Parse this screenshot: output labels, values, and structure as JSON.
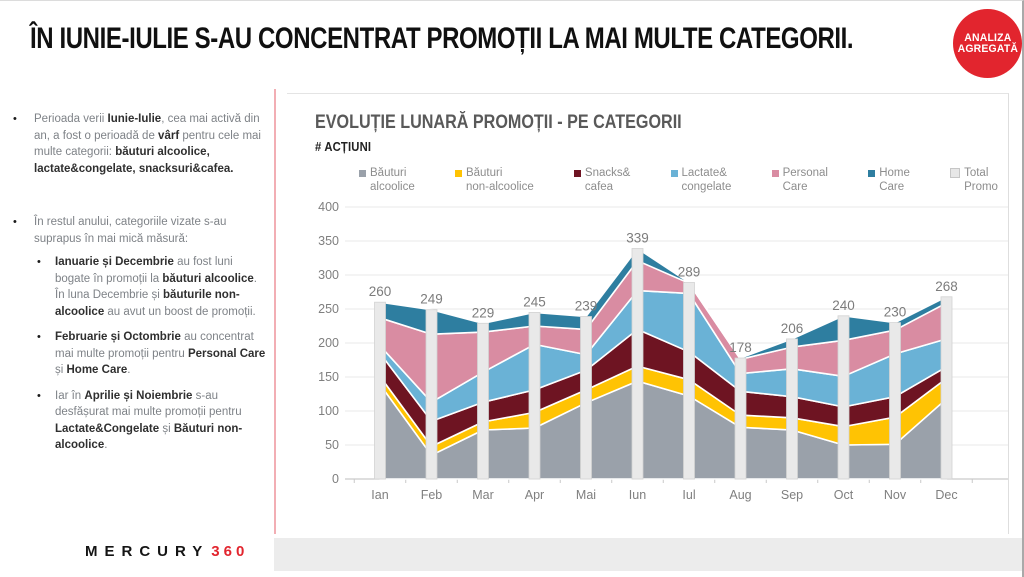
{
  "slide": {
    "title": "ÎN IUNIE-IULIE S-AU CONCENTRAT PROMOȚII LA MAI MULTE CATEGORII.",
    "badge": {
      "line1": "ANALIZA",
      "line2": "AGREGATĂ",
      "color": "#e2252e"
    },
    "logo": {
      "brand": "MERCURY",
      "suffix": "360"
    }
  },
  "sidebar": {
    "bullets": [
      {
        "level": 1,
        "gap": "mb-big",
        "segments": [
          [
            "Perioada verii ",
            0
          ],
          [
            "Iunie-Iulie",
            1
          ],
          [
            ", cea mai activă din an, a fost o perioadă de ",
            0
          ],
          [
            "vârf",
            1
          ],
          [
            " pentru cele mai multe categorii: ",
            0
          ],
          [
            "băuturi alcoolice, lactate&congelate, snacksuri&cafea.",
            1
          ]
        ]
      },
      {
        "level": 1,
        "gap": "mb-sm",
        "segments": [
          [
            "În restul anului, categoriile vizate s-au suprapus în mai mică măsură:",
            0
          ]
        ]
      },
      {
        "level": 2,
        "gap": "mb-md",
        "segments": [
          [
            "Ianuarie și Decembrie",
            1
          ],
          [
            " au fost luni bogate în promoții la ",
            0
          ],
          [
            "băuturi alcoolice",
            1
          ],
          [
            ". În luna Decembrie și ",
            0
          ],
          [
            "băuturile non-alcoolice",
            1
          ],
          [
            " au avut un boost de promoții.",
            0
          ]
        ]
      },
      {
        "level": 2,
        "gap": "mb-md",
        "segments": [
          [
            "Februarie și Octombrie",
            1
          ],
          [
            " au concentrat mai multe promoții pentru ",
            0
          ],
          [
            "Personal Care",
            1
          ],
          [
            " și ",
            0
          ],
          [
            "Home Care",
            1
          ],
          [
            ".",
            0
          ]
        ]
      },
      {
        "level": 2,
        "gap": "",
        "segments": [
          [
            "Iar în ",
            0
          ],
          [
            "Aprilie și Noiembrie",
            1
          ],
          [
            " s-au desfășurat mai multe promoții pentru ",
            0
          ],
          [
            "Lactate&Congelate",
            1
          ],
          [
            " și ",
            0
          ],
          [
            "Băuturi non-alcoolice",
            1
          ],
          [
            ".",
            0
          ]
        ]
      }
    ]
  },
  "chart_data": {
    "type": "area",
    "stacked": true,
    "title": "EVOLUȚIE LUNARĂ PROMOȚII - PE CATEGORII",
    "subtitle": "# ACȚIUNI",
    "categories": [
      "Ian",
      "Feb",
      "Mar",
      "Apr",
      "Mai",
      "Iun",
      "Iul",
      "Aug",
      "Sep",
      "Oct",
      "Nov",
      "Dec"
    ],
    "series": [
      {
        "name": "Băuturi alcoolice",
        "legend_lines": "Băuturi\nalcoolice",
        "color": "#9aa1aa",
        "values": [
          139,
          35,
          72,
          75,
          112,
          144,
          122,
          76,
          72,
          50,
          51,
          118
        ]
      },
      {
        "name": "Băuturi non-alcoolice",
        "legend_lines": "Băuturi\nnon-alcoolice",
        "color": "#ffc303",
        "values": [
          12,
          13,
          12,
          23,
          19,
          22,
          24,
          18,
          18,
          27,
          40,
          30
        ]
      },
      {
        "name": "Snacks&cafea",
        "legend_lines": "Snacks&\ncafea",
        "color": "#6e1422",
        "values": [
          34,
          37,
          29,
          33,
          29,
          54,
          41,
          35,
          31,
          29,
          30,
          17
        ]
      },
      {
        "name": "Lactate&congelate",
        "legend_lines": "Lactate&\ncongelate",
        "color": "#6ab2d6",
        "values": [
          11,
          28,
          44,
          67,
          23,
          57,
          86,
          26,
          41,
          45,
          63,
          41
        ]
      },
      {
        "name": "Personal Care",
        "legend_lines": "Personal\nCare",
        "color": "#d98ca2",
        "values": [
          41,
          100,
          59,
          27,
          37,
          44,
          15,
          21,
          32,
          53,
          35,
          53
        ]
      },
      {
        "name": "Home Care",
        "legend_lines": "Home\nCare",
        "color": "#2e7ea0",
        "values": [
          23,
          36,
          13,
          20,
          19,
          18,
          1,
          2,
          12,
          36,
          11,
          9
        ]
      }
    ],
    "total_series": {
      "name": "Total Promo",
      "legend_lines": "Total\nPromo",
      "color": "#e9e9e9",
      "border_color": "#d3d3d3",
      "values": [
        260,
        249,
        229,
        245,
        239,
        339,
        289,
        178,
        206,
        240,
        230,
        268
      ]
    },
    "y_axis": {
      "min": 0,
      "max": 400,
      "step": 50
    },
    "legend_position": "top",
    "grid": true,
    "label_color": "#7c7c7c"
  }
}
